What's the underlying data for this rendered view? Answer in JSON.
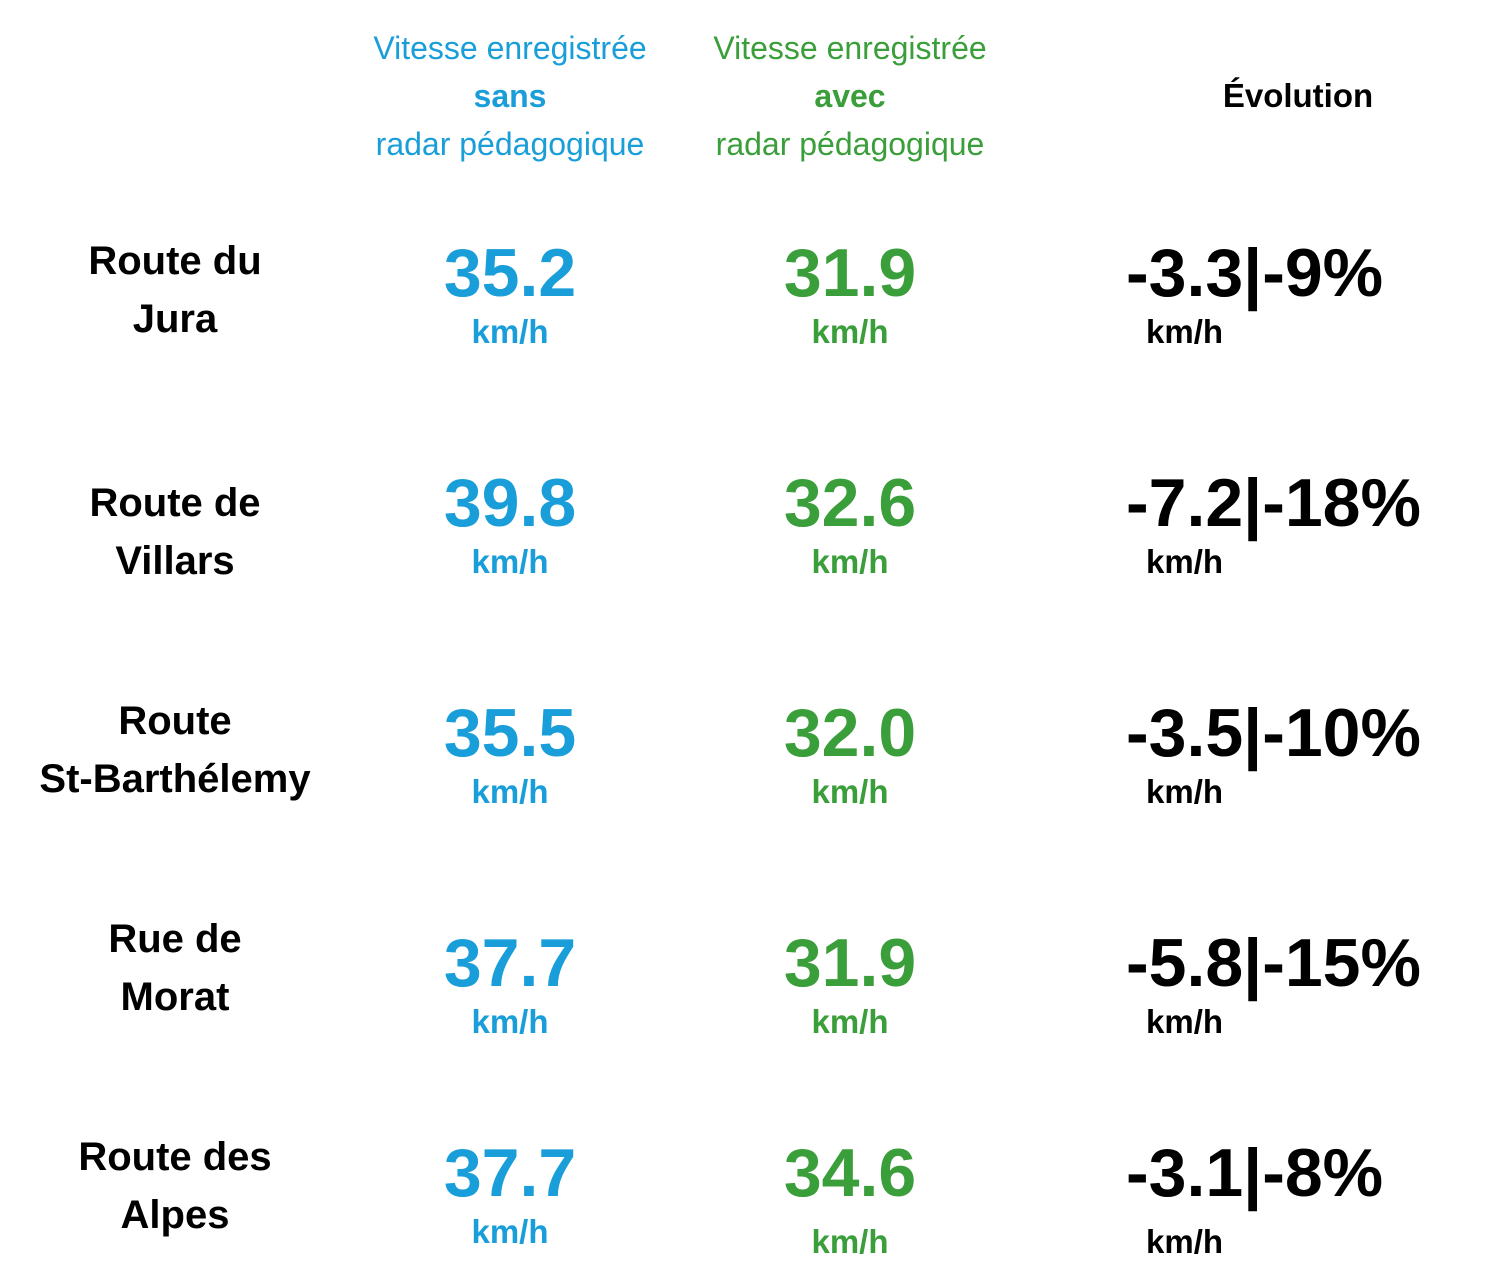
{
  "headers": {
    "without": {
      "line1": "Vitesse enregistrée",
      "line2": "sans",
      "line3": "radar pédagogique"
    },
    "with": {
      "line1": "Vitesse enregistrée",
      "line2": "avec",
      "line3": "radar pédagogique"
    },
    "evolution": "Évolution"
  },
  "colors": {
    "without": "#1a9ed9",
    "with": "#3a9e3a",
    "evolution": "#000000"
  },
  "rows": [
    {
      "road_line1": "Route du",
      "road_line2": "Jura",
      "without": "35.2",
      "with": "31.9",
      "evolution": "-3.3|-9%",
      "unit": "km/h"
    },
    {
      "road_line1": "Route de",
      "road_line2": "Villars",
      "without": "39.8",
      "with": "32.6",
      "evolution": "-7.2|-18%",
      "unit": "km/h"
    },
    {
      "road_line1": "Route",
      "road_line2": "St-Barthélemy",
      "without": "35.5",
      "with": "32.0",
      "evolution": "-3.5|-10%",
      "unit": "km/h"
    },
    {
      "road_line1": "Rue de",
      "road_line2": "Morat",
      "without": "37.7",
      "with": "31.9",
      "evolution": "-5.8|-15%",
      "unit": "km/h"
    },
    {
      "road_line1": "Route des",
      "road_line2": "Alpes",
      "without": "37.7",
      "with": "34.6",
      "evolution": "-3.1|-8%",
      "unit": "km/h"
    }
  ]
}
